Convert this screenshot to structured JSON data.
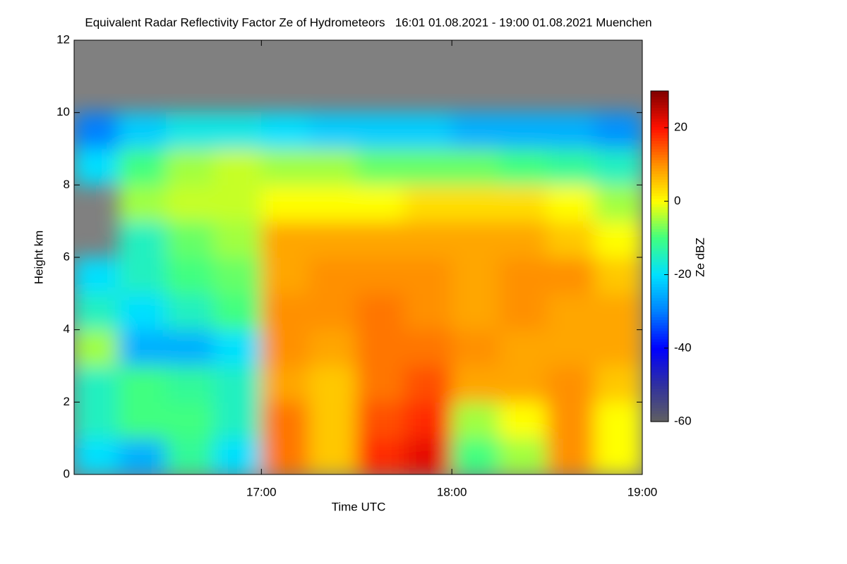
{
  "chart_data": {
    "type": "heatmap",
    "title": "Equivalent Radar Reflectivity Factor Ze of Hydrometeors   16:01 01.08.2021 - 19:00 01.08.2021 Muenchen",
    "xlabel": "Time UTC",
    "ylabel": "Height km",
    "colorbar_label": "Ze dBZ",
    "xbins": [
      16.0167,
      16.25,
      16.5,
      16.75,
      17,
      17.25,
      17.5,
      17.75,
      18,
      18.25,
      18.5,
      18.75,
      19
    ],
    "ybins": [
      0,
      1,
      2,
      3,
      4,
      5,
      6,
      7,
      8,
      9,
      10,
      11,
      12
    ],
    "z": [
      [
        -20,
        -25,
        -12,
        -20,
        12,
        5,
        18,
        22,
        -10,
        -5,
        10,
        0
      ],
      [
        -15,
        -10,
        -10,
        -15,
        12,
        5,
        15,
        18,
        -5,
        0,
        10,
        0
      ],
      [
        -15,
        -10,
        -12,
        -15,
        8,
        5,
        12,
        15,
        8,
        8,
        10,
        5
      ],
      [
        -5,
        -25,
        -25,
        -20,
        10,
        8,
        12,
        12,
        10,
        8,
        8,
        8
      ],
      [
        -15,
        -20,
        -15,
        -10,
        10,
        10,
        12,
        10,
        8,
        10,
        8,
        8
      ],
      [
        -20,
        -15,
        -10,
        -8,
        8,
        10,
        10,
        10,
        8,
        10,
        10,
        5
      ],
      [
        null,
        -15,
        -8,
        -5,
        8,
        8,
        8,
        8,
        8,
        8,
        5,
        0
      ],
      [
        null,
        -5,
        -3,
        -3,
        0,
        0,
        0,
        3,
        3,
        3,
        0,
        -5
      ],
      [
        -20,
        -10,
        -5,
        -3,
        -5,
        -5,
        -8,
        -8,
        -8,
        -10,
        -12,
        -15
      ],
      [
        -30,
        -22,
        -18,
        -18,
        -20,
        -22,
        -22,
        -22,
        -25,
        -25,
        -25,
        -28
      ],
      [
        null,
        null,
        null,
        null,
        null,
        null,
        null,
        null,
        null,
        null,
        null,
        null
      ],
      [
        null,
        null,
        null,
        null,
        null,
        null,
        null,
        null,
        null,
        null,
        null,
        null
      ]
    ],
    "xlim": [
      16.0167,
      19
    ],
    "xticks": [
      {
        "value": 17,
        "label": "17:00"
      },
      {
        "value": 18,
        "label": "18:00"
      },
      {
        "value": 19,
        "label": "19:00"
      }
    ],
    "ylim": [
      0,
      12
    ],
    "yticks": [
      0,
      2,
      4,
      6,
      8,
      10,
      12
    ],
    "zlim": [
      -60,
      30
    ],
    "zticks": [
      -60,
      -40,
      -20,
      0,
      20
    ],
    "colorscale": [
      "#606060",
      "#3030a0",
      "#0000ff",
      "#0080ff",
      "#00e0ff",
      "#40ff80",
      "#ffff00",
      "#ff9000",
      "#ff1000",
      "#800000"
    ],
    "missing_color": "#808080"
  }
}
